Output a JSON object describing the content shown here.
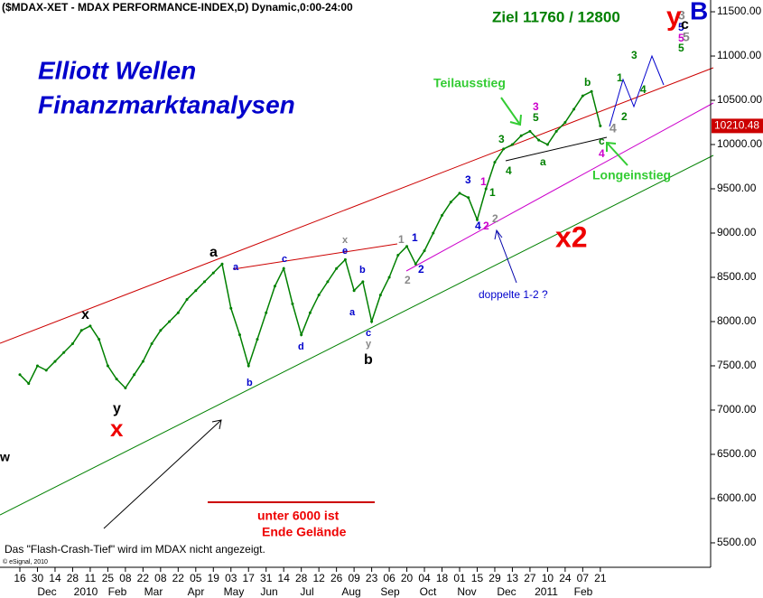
{
  "chart_data": {
    "type": "line",
    "title": "($MDAX-XET - MDAX PERFORMANCE-INDEX,D) Dynamic,0:00-24:00",
    "categories": [
      "16",
      null,
      "30",
      null,
      "14",
      null,
      "28",
      null,
      "11",
      null,
      "25",
      null,
      "08",
      null,
      "22",
      null,
      "08",
      null,
      "22",
      null,
      "05",
      null,
      "19",
      null,
      "03",
      null,
      "17",
      null,
      "31",
      null,
      "14",
      null,
      "28",
      null,
      "12",
      null,
      "26",
      null,
      "09",
      null,
      "23",
      null,
      "06",
      null,
      "20",
      null,
      "04",
      null,
      "18",
      null,
      "01",
      null,
      "15",
      null,
      "29",
      null,
      "13",
      null,
      "27",
      null,
      "10",
      null,
      "24",
      null,
      "07",
      null,
      "21"
    ],
    "month_labels": [
      "Dec",
      "2010",
      "Feb",
      "Mar",
      "Apr",
      "May",
      "Jun",
      "Jul",
      "Aug",
      "Sep",
      "Oct",
      "Nov",
      "Dec",
      "2011",
      "Feb"
    ],
    "series": [
      {
        "name": "MDAX",
        "color": "#008000",
        "values": [
          7400,
          7300,
          7500,
          7450,
          7550,
          7650,
          7750,
          7900,
          7950,
          7800,
          7500,
          7350,
          7250,
          7400,
          7550,
          7750,
          7900,
          8000,
          8100,
          8250,
          8350,
          8450,
          8550,
          8650,
          8150,
          7850,
          7500,
          7800,
          8100,
          8400,
          8600,
          8200,
          7850,
          8100,
          8300,
          8450,
          8600,
          8700,
          8350,
          8450,
          8000,
          8300,
          8500,
          8750,
          8850,
          8650,
          8800,
          9000,
          9200,
          9350,
          9450,
          9400,
          9150,
          9500,
          9800,
          9950,
          10000,
          10100,
          10150,
          10050,
          10000,
          10150,
          10250,
          10400,
          10550,
          10600,
          10210.48
        ],
        "value_labels": [
          null,
          null,
          null,
          null,
          null,
          null,
          null,
          null,
          null,
          null,
          null,
          null,
          null,
          null,
          null,
          null,
          null,
          null,
          null,
          null,
          null,
          null,
          null,
          null,
          null,
          null,
          null,
          null,
          null,
          null,
          null,
          null,
          null,
          null,
          null,
          null,
          null,
          null,
          null,
          null,
          null,
          null,
          null,
          null,
          null,
          null,
          null,
          null,
          null,
          null,
          null,
          null,
          null,
          null,
          null,
          null,
          null,
          null,
          null,
          null,
          null,
          null,
          null,
          null,
          null,
          null,
          "10210.48"
        ]
      }
    ],
    "ylim": [
      5224,
      11633
    ],
    "yticks": [
      {
        "value": 5500,
        "label": "5500.00"
      },
      {
        "value": 6000,
        "label": "6000.00"
      },
      {
        "value": 6500,
        "label": "6500.00"
      },
      {
        "value": 7000,
        "label": "7000.00"
      },
      {
        "value": 7500,
        "label": "7500.00"
      },
      {
        "value": 8000,
        "label": "8000.00"
      },
      {
        "value": 8500,
        "label": "8500.00"
      },
      {
        "value": 9000,
        "label": "9000.00"
      },
      {
        "value": 9500,
        "label": "9500.00"
      },
      {
        "value": 10000,
        "label": "10000.00"
      },
      {
        "value": 10500,
        "label": "10500.00"
      },
      {
        "value": 11000,
        "label": "11000.00"
      },
      {
        "value": 11500,
        "label": "11500.00"
      }
    ],
    "annotations": [
      "Elliott Wellen",
      "Finanzmarktanalysen",
      "Ziel 11760 / 12800",
      "Teilausstieg",
      "Longeinstieg",
      "doppelte 1-2 ?",
      "x2",
      "unter 6000 ist",
      "Ende Gelände",
      "Das \"Flash-Crash-Tief\" wird im MDAX nicht angezeigt.",
      "© eSignal, 2010",
      "w",
      "x",
      "y",
      "x",
      "a",
      "a",
      "b",
      "c",
      "d",
      "e",
      "x",
      "b",
      "a",
      "c",
      "y",
      "b",
      "1",
      "1",
      "2",
      "2",
      "3",
      "1",
      "4",
      "2",
      "2",
      "1",
      "3",
      "4",
      "3",
      "5",
      "a",
      "b",
      "c",
      "4",
      "4",
      "1",
      "2",
      "3",
      "4",
      "3",
      "5",
      "5",
      "5",
      "y",
      "c",
      "B",
      "5"
    ]
  }
}
